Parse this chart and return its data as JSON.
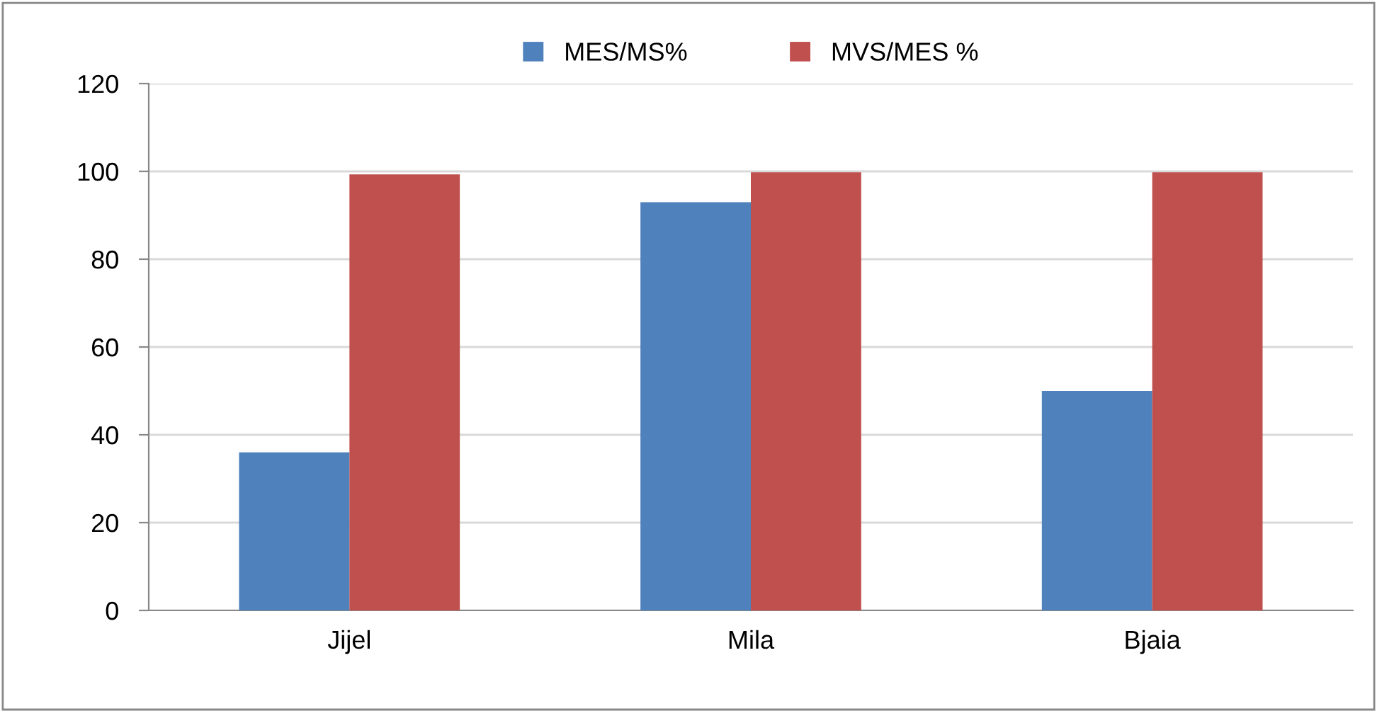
{
  "chart_data": {
    "type": "bar",
    "categories": [
      "Jijel",
      "Mila",
      "Bjaia"
    ],
    "series": [
      {
        "name": "MES/MS%",
        "color": "#4f81bd",
        "values": [
          36,
          93,
          50
        ]
      },
      {
        "name": "MVS/MES %",
        "color": "#c0504d",
        "values": [
          99.3,
          99.8,
          99.8
        ]
      }
    ],
    "ylim": [
      0,
      120
    ],
    "yticks": [
      0,
      20,
      40,
      60,
      80,
      100,
      120
    ],
    "grid": "y",
    "legend": "top"
  }
}
